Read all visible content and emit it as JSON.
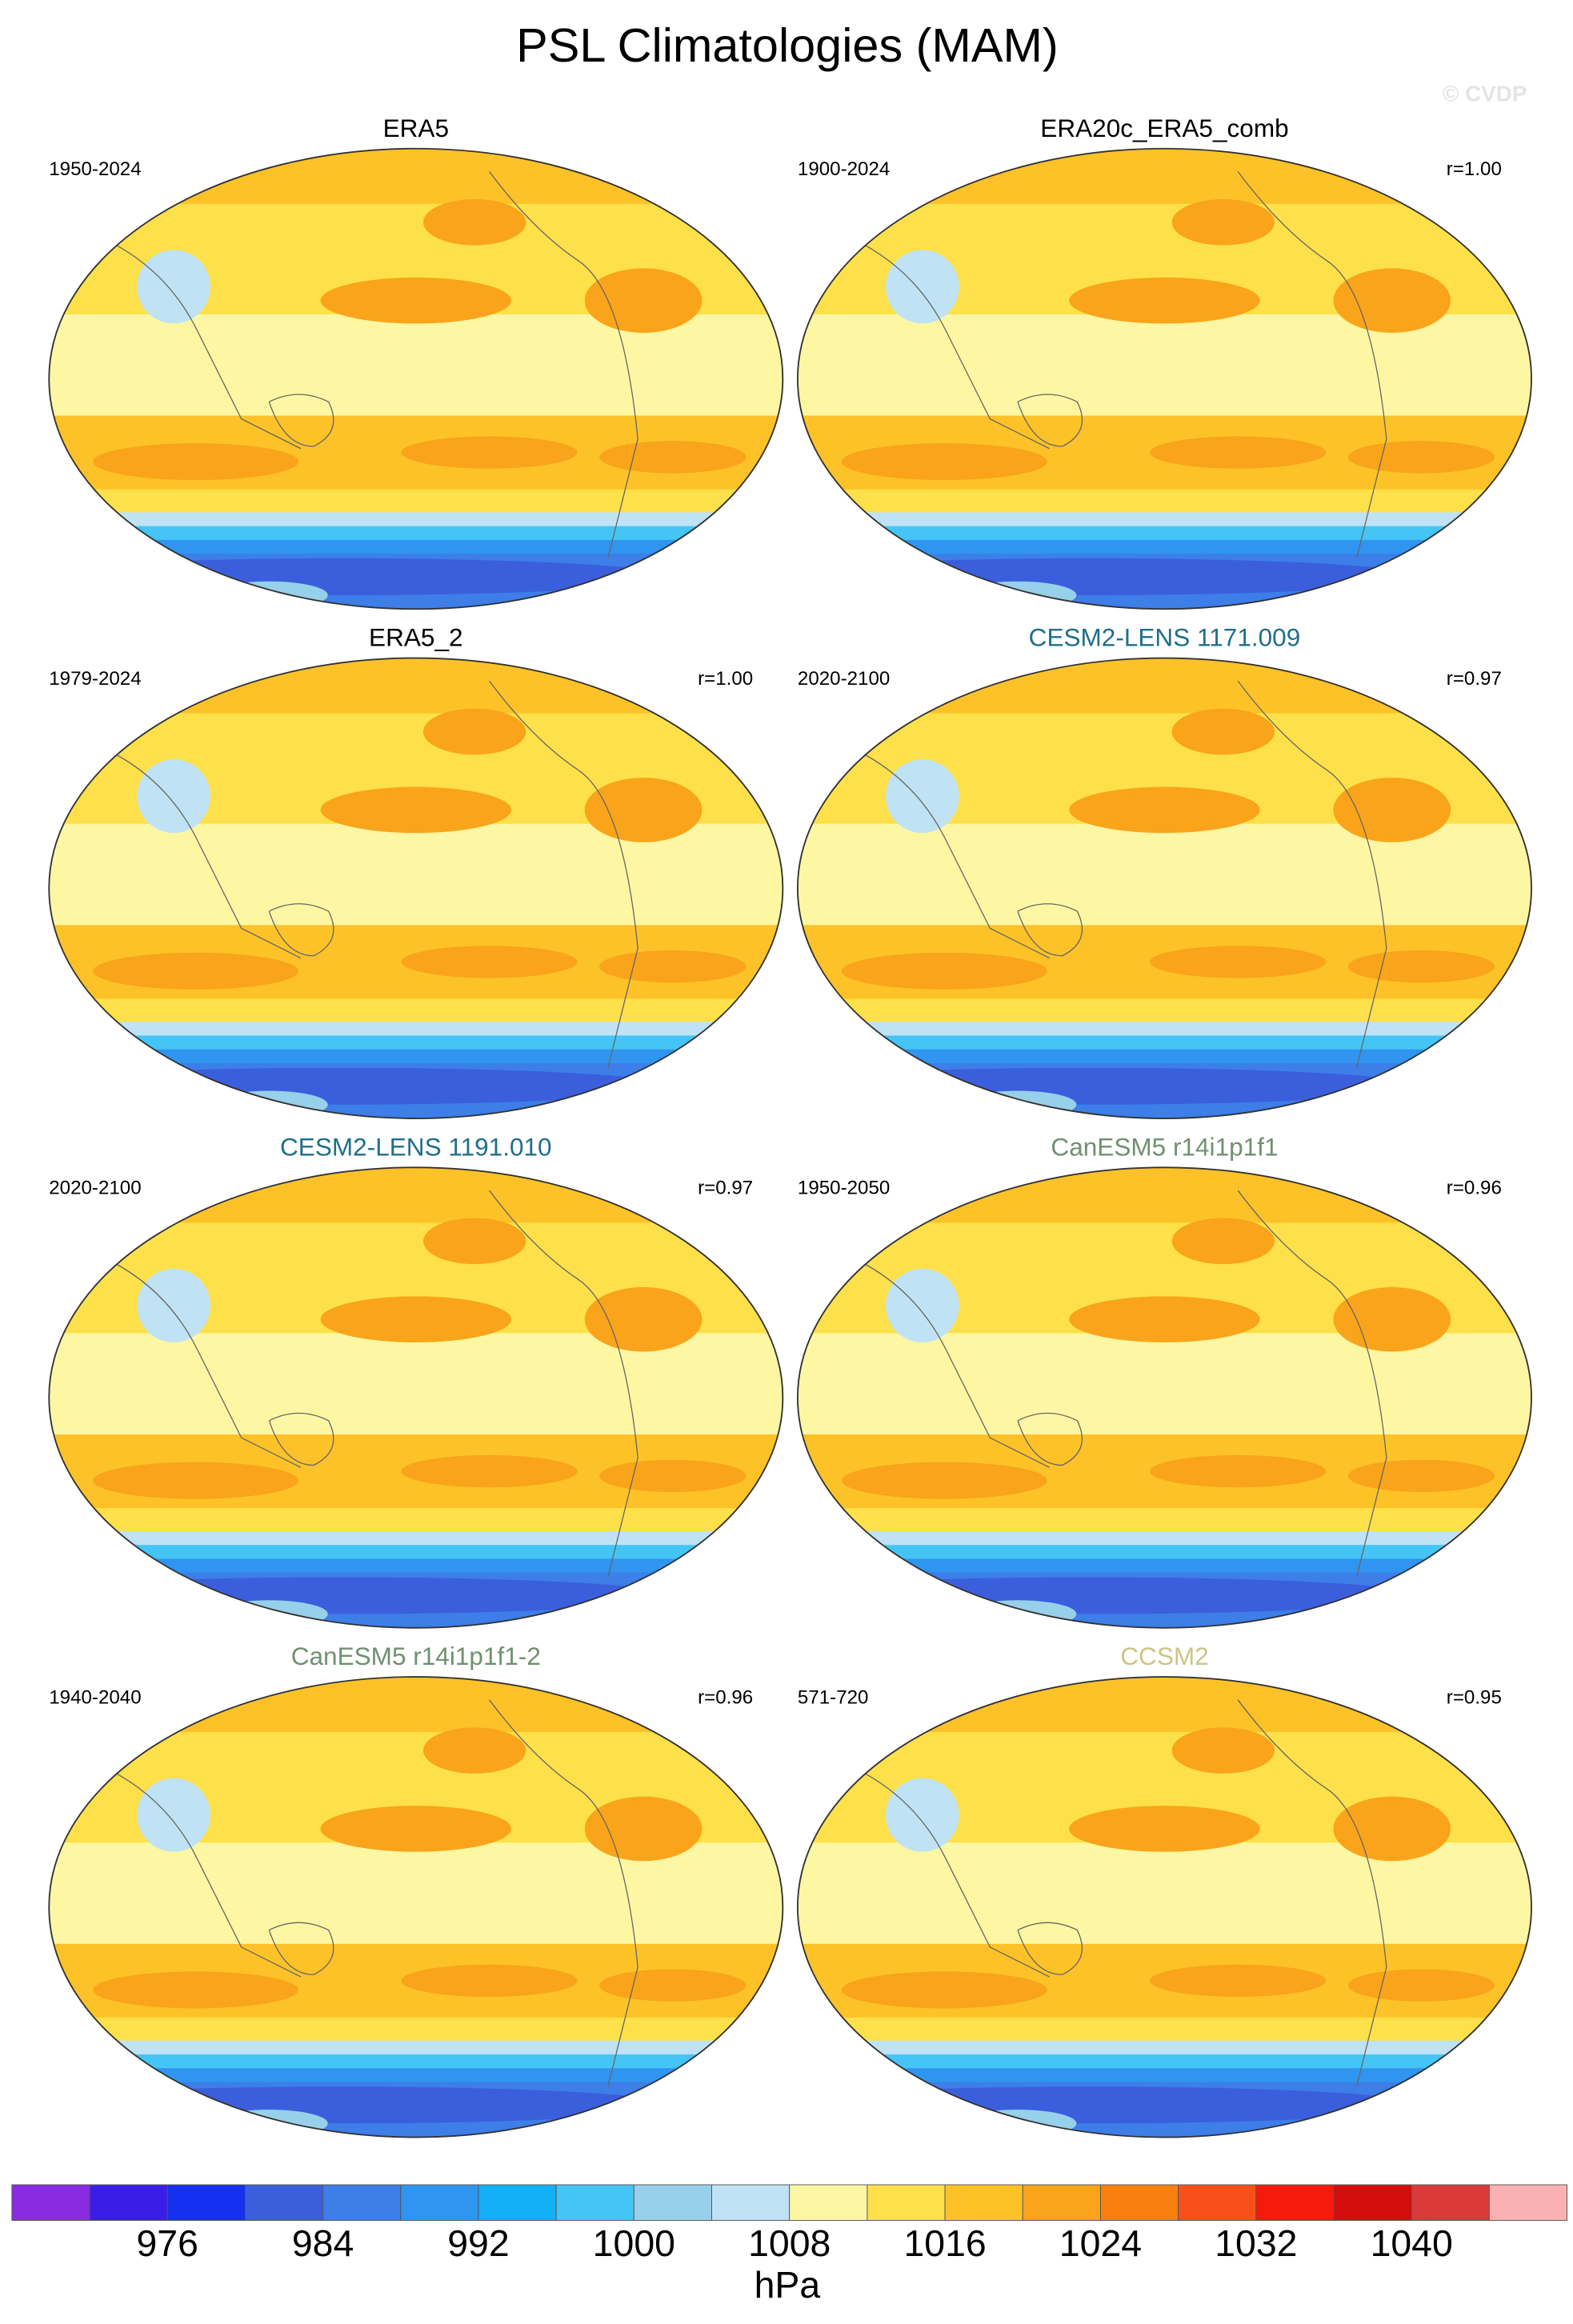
{
  "header": {
    "title": "PSL Climatologies (MAM)",
    "watermark": "© CVDP"
  },
  "panels": [
    {
      "title": "ERA5",
      "title_color": "#000000",
      "period": "1950-2024"
    },
    {
      "title": "ERA20c_ERA5_comb",
      "title_color": "#000000",
      "period": "1900-2024",
      "r": "r=1.00"
    },
    {
      "title": "ERA5_2",
      "title_color": "#000000",
      "period": "1979-2024",
      "r": "r=1.00"
    },
    {
      "title": "CESM2-LENS 1171.009",
      "title_color": "#1f6f8b",
      "period": "2020-2100",
      "r": "r=0.97"
    },
    {
      "title": "CESM2-LENS 1191.010",
      "title_color": "#1f6f8b",
      "period": "2020-2100",
      "r": "r=0.97"
    },
    {
      "title": "CanESM5 r14i1p1f1",
      "title_color": "#6f9170",
      "period": "1950-2050",
      "r": "r=0.96"
    },
    {
      "title": "CanESM5 r14i1p1f1-2",
      "title_color": "#6f9170",
      "period": "1940-2040",
      "r": "r=0.96"
    },
    {
      "title": "CCSM2",
      "title_color": "#cfc486",
      "period": "571-720",
      "r": "r=0.95"
    }
  ],
  "colorbar": {
    "colors": [
      "#8a2be2",
      "#3a1ee8",
      "#1630f0",
      "#3b5fdc",
      "#3d7ee8",
      "#2f95f0",
      "#12b0f5",
      "#44c5f5",
      "#97d0ea",
      "#bfe3f4",
      "#fdf7a3",
      "#fde04a",
      "#fcc228",
      "#f9a41a",
      "#f97f10",
      "#f9501a",
      "#f51a0c",
      "#d40d0d",
      "#d93b3b",
      "#f9b1b1"
    ],
    "labels": [
      "976",
      "984",
      "992",
      "1000",
      "1008",
      "1016",
      "1024",
      "1032",
      "1040"
    ],
    "unit": "hPa"
  }
}
